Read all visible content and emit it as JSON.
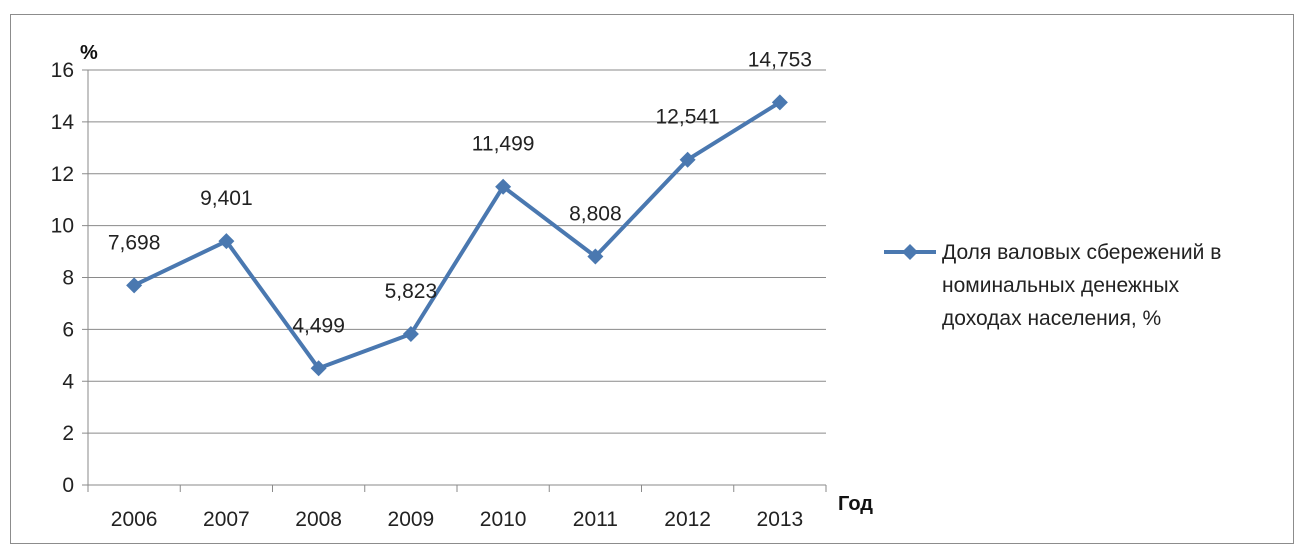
{
  "chart_data": {
    "type": "line",
    "title": "",
    "xlabel": "Год",
    "ylabel": "%",
    "ylim": [
      0,
      16
    ],
    "yticks": [
      0,
      2,
      4,
      6,
      8,
      10,
      12,
      14,
      16
    ],
    "categories": [
      "2006",
      "2007",
      "2008",
      "2009",
      "2010",
      "2011",
      "2012",
      "2013"
    ],
    "series": [
      {
        "name": "Доля валовых сбережений в номинальных денежных доходах населения, %",
        "legend_lines": [
          "Доля валовых сбережений в",
          "номинальных денежных",
          "доходах населения, %"
        ],
        "values": [
          7.698,
          9.401,
          4.499,
          5.823,
          11.499,
          8.808,
          12.541,
          14.753
        ],
        "labels": [
          "7,698",
          "9,401",
          "4,499",
          "5,823",
          "11,499",
          "8,808",
          "12,541",
          "14,753"
        ],
        "color": "#4a78b0"
      }
    ],
    "grid": true,
    "legend_position": "right",
    "marker": "diamond"
  }
}
